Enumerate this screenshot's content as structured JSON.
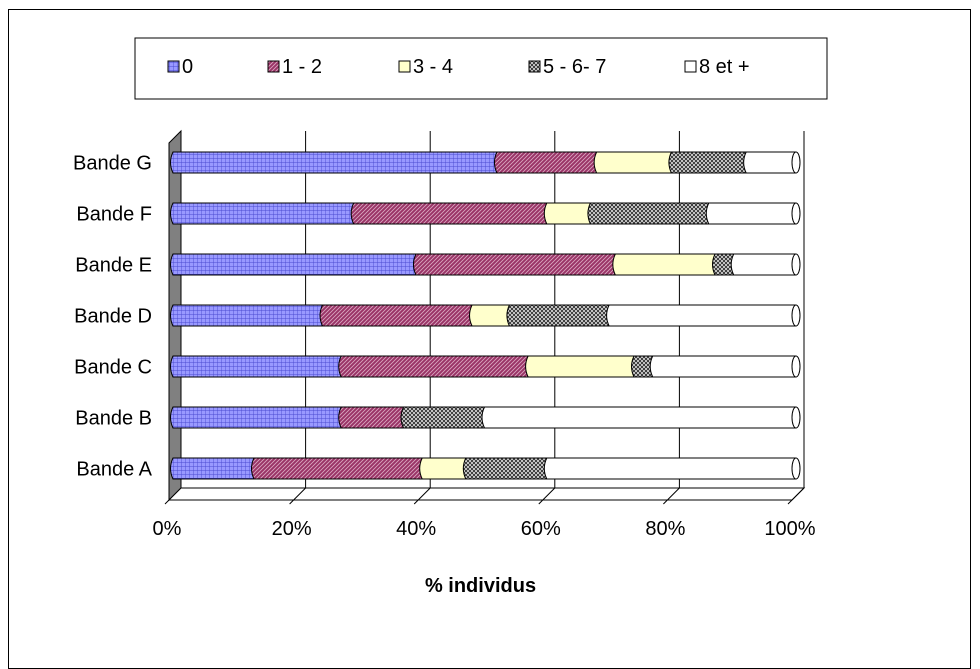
{
  "chart_data": {
    "type": "bar",
    "orientation": "horizontal",
    "stacked": "percent",
    "three_d": true,
    "categories": [
      "Bande A",
      "Bande B",
      "Bande C",
      "Bande D",
      "Bande E",
      "Bande F",
      "Bande G"
    ],
    "series": [
      {
        "name": "0",
        "values": [
          13,
          27,
          27,
          24,
          39,
          29,
          52
        ],
        "color": "#9999ff",
        "pattern": "grid"
      },
      {
        "name": "1 - 2",
        "values": [
          27,
          10,
          30,
          24,
          32,
          31,
          16
        ],
        "color": "#993366",
        "pattern": "diagonal"
      },
      {
        "name": "3 - 4",
        "values": [
          7,
          0,
          17,
          6,
          16,
          7,
          12
        ],
        "color": "#ffffcc",
        "pattern": "solid"
      },
      {
        "name": "5 - 6- 7",
        "values": [
          13,
          13,
          3,
          16,
          3,
          19,
          12
        ],
        "color": "#c0c0c0",
        "pattern": "checker"
      },
      {
        "name": "8 et +",
        "values": [
          40,
          50,
          23,
          30,
          10,
          14,
          8
        ],
        "color": "#ffffff",
        "pattern": "solid"
      }
    ],
    "xlabel": "% individus",
    "ylabel": "",
    "xlim": [
      0,
      100
    ],
    "x_ticks": [
      "0%",
      "20%",
      "40%",
      "60%",
      "80%",
      "100%"
    ],
    "grid": true,
    "legend_position": "top"
  }
}
